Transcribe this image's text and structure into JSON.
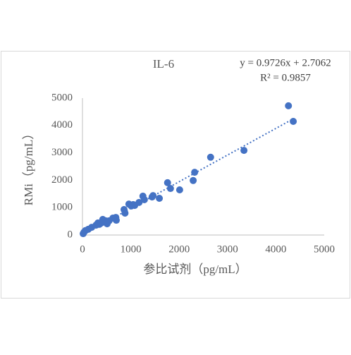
{
  "chart_data": {
    "type": "scatter",
    "title": "IL-6",
    "x_label": "参比试剂（pg/mL）",
    "y_label": "RMi（pg/mL）",
    "color": "#4472c4",
    "x": [
      4260,
      4360,
      3340,
      2650,
      2320,
      2290,
      2010,
      1760,
      1820,
      1590,
      1440,
      1460,
      1250,
      1280,
      1170,
      1080,
      960,
      1010,
      860,
      880,
      690,
      630,
      700,
      480,
      510,
      420,
      350,
      280,
      190,
      120,
      60,
      15,
      30,
      390,
      320,
      550,
      1050
    ],
    "values": [
      4720,
      4150,
      3090,
      2840,
      2290,
      1990,
      1650,
      1910,
      1700,
      1340,
      1390,
      1440,
      1420,
      1290,
      1190,
      1080,
      1130,
      1060,
      930,
      800,
      640,
      620,
      540,
      520,
      410,
      570,
      390,
      360,
      280,
      210,
      160,
      50,
      100,
      440,
      440,
      520,
      1110
    ],
    "trendline": {
      "slope": 0.9726,
      "intercept": 2.7062,
      "equation": "y = 0.9726x + 2.7062",
      "r_squared": "R² = 0.9857"
    },
    "xlim": [
      0,
      5000
    ],
    "xticks": [
      0,
      1000,
      2000,
      3000,
      4000,
      5000
    ],
    "ylim": [
      0,
      5000
    ],
    "yticks": [
      0,
      1000,
      2000,
      3000,
      4000,
      5000
    ]
  }
}
